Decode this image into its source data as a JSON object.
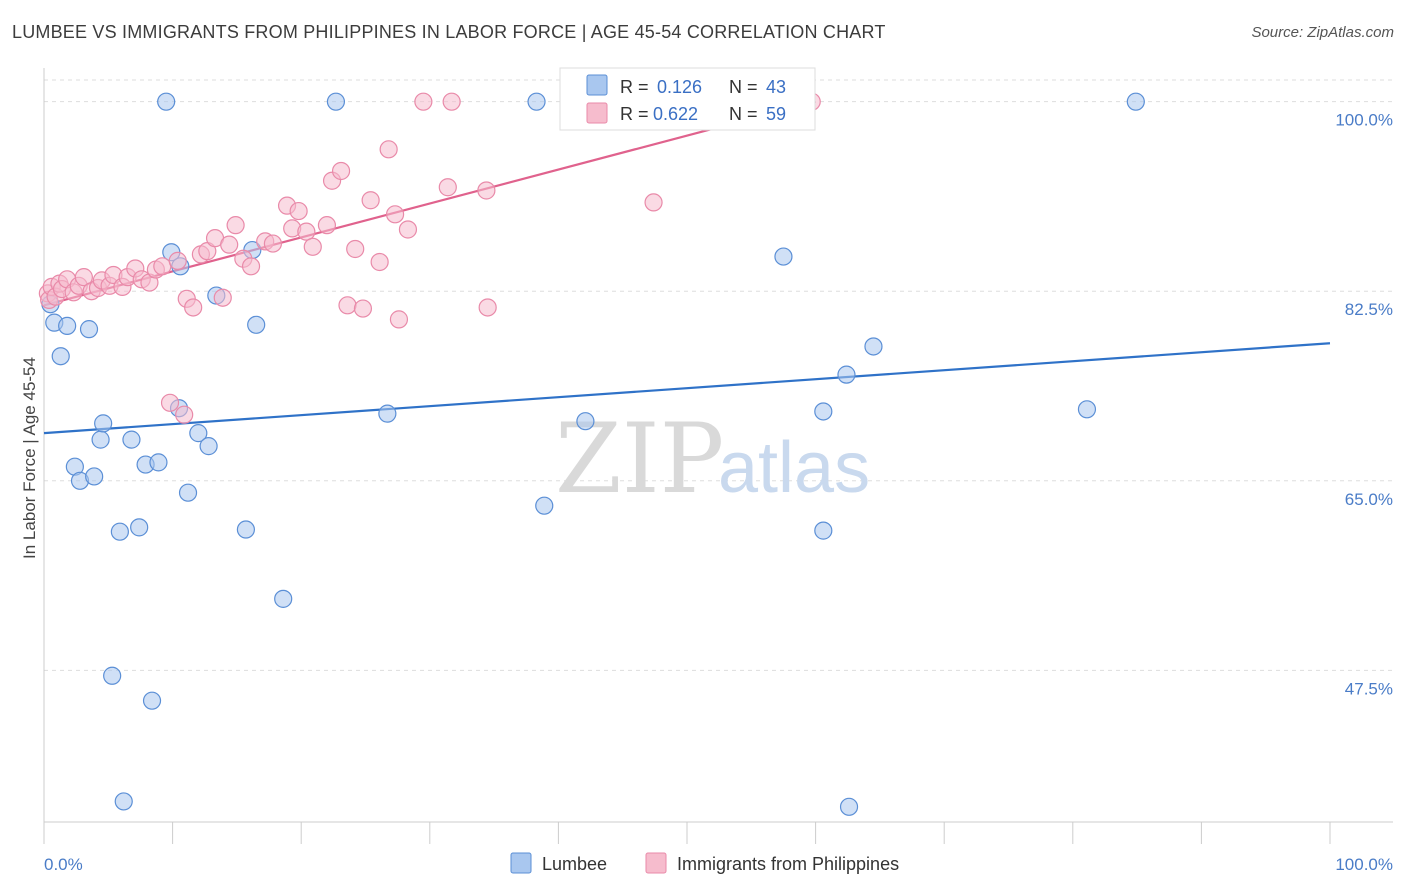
{
  "title": "LUMBEE VS IMMIGRANTS FROM PHILIPPINES IN LABOR FORCE | AGE 45-54 CORRELATION CHART",
  "source": "Source: ZipAtlas.com",
  "watermark": {
    "zip": "ZIP",
    "atlas": "atlas"
  },
  "colors": {
    "lumbee_fill": "#a9c7ef",
    "lumbee_stroke": "#5b8fd6",
    "lumbee_line": "#2f72c8",
    "phil_fill": "#f6bccd",
    "phil_stroke": "#e98aa9",
    "phil_line": "#e0628d",
    "grid": "#dddddd",
    "tick_text": "#4a7cc7"
  },
  "legend": {
    "rows": [
      {
        "r_label": "R = ",
        "r_value": "0.126",
        "n_label": "N = ",
        "n_value": "43"
      },
      {
        "r_label": "R = ",
        "r_value": "0.622",
        "n_label": "N = ",
        "n_value": "59"
      }
    ]
  },
  "chart_data": {
    "type": "scatter",
    "title": "LUMBEE VS IMMIGRANTS FROM PHILIPPINES IN LABOR FORCE | AGE 45-54 CORRELATION CHART",
    "xlabel": "",
    "ylabel": "In Labor Force | Age 45-54",
    "xlim": [
      0,
      100
    ],
    "ylim": [
      33.5,
      102
    ],
    "x_tick_labels": [
      "0.0%",
      "100.0%"
    ],
    "y_ticks": [
      47.5,
      65.0,
      82.5,
      100.0
    ],
    "y_tick_labels": [
      "47.5%",
      "65.0%",
      "82.5%",
      "100.0%"
    ],
    "grid": true,
    "legend_position": "top-center",
    "series": [
      {
        "name": "Lumbee",
        "points": [
          [
            0.5,
            81.3
          ],
          [
            0.8,
            79.6
          ],
          [
            1.3,
            76.5
          ],
          [
            1.8,
            79.3
          ],
          [
            2.4,
            66.3
          ],
          [
            2.8,
            65.0
          ],
          [
            3.5,
            79.0
          ],
          [
            3.9,
            65.4
          ],
          [
            4.4,
            68.8
          ],
          [
            4.6,
            70.3
          ],
          [
            5.3,
            47.0
          ],
          [
            5.9,
            60.3
          ],
          [
            6.2,
            35.4
          ],
          [
            6.8,
            68.8
          ],
          [
            7.4,
            60.7
          ],
          [
            7.9,
            66.5
          ],
          [
            8.4,
            44.7
          ],
          [
            8.9,
            66.7
          ],
          [
            9.5,
            100.0
          ],
          [
            9.9,
            86.1
          ],
          [
            10.5,
            71.7
          ],
          [
            10.6,
            84.8
          ],
          [
            11.2,
            63.9
          ],
          [
            12.0,
            69.4
          ],
          [
            12.8,
            68.2
          ],
          [
            13.4,
            82.1
          ],
          [
            15.7,
            60.5
          ],
          [
            16.2,
            86.3
          ],
          [
            16.5,
            79.4
          ],
          [
            18.6,
            54.1
          ],
          [
            22.7,
            100.0
          ],
          [
            26.7,
            71.2
          ],
          [
            38.3,
            100.0
          ],
          [
            38.9,
            62.7
          ],
          [
            42.1,
            70.5
          ],
          [
            57.5,
            85.7
          ],
          [
            60.6,
            71.4
          ],
          [
            60.6,
            60.4
          ],
          [
            62.4,
            74.8
          ],
          [
            62.6,
            34.9
          ],
          [
            64.5,
            77.4
          ],
          [
            81.1,
            71.6
          ],
          [
            84.9,
            100.0
          ]
        ],
        "trend": {
          "x": [
            0,
            100
          ],
          "y": [
            69.4,
            77.7
          ]
        }
      },
      {
        "name": "Immigrants from Philippines",
        "points": [
          [
            0.3,
            82.3
          ],
          [
            0.4,
            81.7
          ],
          [
            0.6,
            82.9
          ],
          [
            0.9,
            82.0
          ],
          [
            1.2,
            83.2
          ],
          [
            1.4,
            82.7
          ],
          [
            1.8,
            83.6
          ],
          [
            2.3,
            82.4
          ],
          [
            2.7,
            83.0
          ],
          [
            3.1,
            83.8
          ],
          [
            3.7,
            82.5
          ],
          [
            4.2,
            82.8
          ],
          [
            4.5,
            83.5
          ],
          [
            5.1,
            83.0
          ],
          [
            5.4,
            84.0
          ],
          [
            6.1,
            82.9
          ],
          [
            6.5,
            83.8
          ],
          [
            7.1,
            84.6
          ],
          [
            7.6,
            83.6
          ],
          [
            8.2,
            83.3
          ],
          [
            8.7,
            84.5
          ],
          [
            9.2,
            84.8
          ],
          [
            9.8,
            72.2
          ],
          [
            10.4,
            85.3
          ],
          [
            10.9,
            71.1
          ],
          [
            11.1,
            81.8
          ],
          [
            11.6,
            81.0
          ],
          [
            12.2,
            85.9
          ],
          [
            12.7,
            86.2
          ],
          [
            13.3,
            87.4
          ],
          [
            13.9,
            81.9
          ],
          [
            14.4,
            86.8
          ],
          [
            14.9,
            88.6
          ],
          [
            15.5,
            85.5
          ],
          [
            16.1,
            84.8
          ],
          [
            17.2,
            87.1
          ],
          [
            17.8,
            86.9
          ],
          [
            18.9,
            90.4
          ],
          [
            19.3,
            88.3
          ],
          [
            19.8,
            89.9
          ],
          [
            20.4,
            88.0
          ],
          [
            20.9,
            86.6
          ],
          [
            22.0,
            88.6
          ],
          [
            22.4,
            92.7
          ],
          [
            23.1,
            93.6
          ],
          [
            23.6,
            81.2
          ],
          [
            24.2,
            86.4
          ],
          [
            24.8,
            80.9
          ],
          [
            25.4,
            90.9
          ],
          [
            26.1,
            85.2
          ],
          [
            26.8,
            95.6
          ],
          [
            27.3,
            89.6
          ],
          [
            27.6,
            79.9
          ],
          [
            28.3,
            88.2
          ],
          [
            29.5,
            100.0
          ],
          [
            31.4,
            92.1
          ],
          [
            31.7,
            100.0
          ],
          [
            34.4,
            91.8
          ],
          [
            34.5,
            81.0
          ],
          [
            47.4,
            90.7
          ],
          [
            59.7,
            100.0
          ]
        ],
        "trend": {
          "x": [
            0,
            60
          ],
          "y": [
            81.2,
            100.0
          ]
        }
      }
    ]
  },
  "bottom_legend": [
    {
      "label": "Lumbee"
    },
    {
      "label": "Immigrants from Philippines"
    }
  ]
}
